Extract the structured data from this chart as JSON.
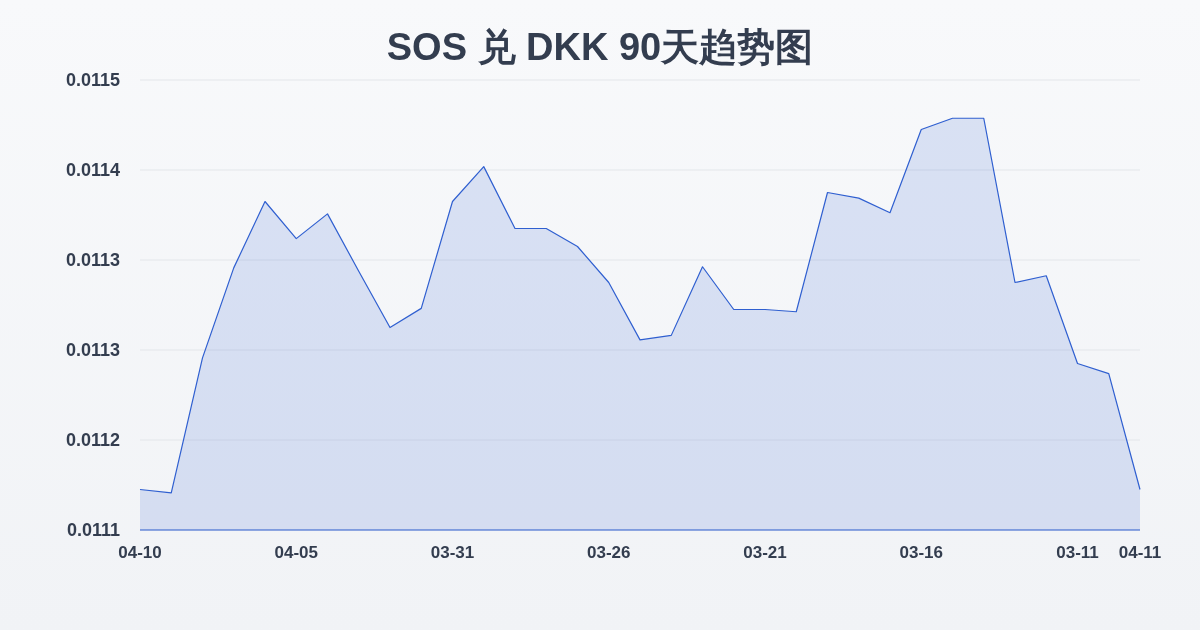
{
  "chart_data": {
    "type": "area",
    "title": "SOS 兑 DKK 90天趋势图",
    "categories": [
      "04-10",
      null,
      null,
      null,
      null,
      "04-05",
      null,
      null,
      null,
      null,
      "03-31",
      null,
      null,
      null,
      null,
      "03-26",
      null,
      null,
      null,
      null,
      "03-21",
      null,
      null,
      null,
      null,
      "03-16",
      null,
      null,
      null,
      null,
      "03-11",
      null,
      "04-11"
    ],
    "values": [
      0.011136,
      0.011133,
      0.011253,
      0.011333,
      0.011392,
      0.011359,
      0.011381,
      0.01133,
      0.01128,
      0.011297,
      0.011392,
      0.011423,
      0.011368,
      0.011368,
      0.011352,
      0.01132,
      0.011269,
      0.011273,
      0.011334,
      0.011296,
      0.011296,
      0.011294,
      0.0114,
      0.011395,
      0.011382,
      0.011456,
      0.011466,
      0.011466,
      0.01132,
      0.011326,
      0.011248,
      0.011239,
      0.011136
    ],
    "color": "#2f5fd0",
    "ylim": [
      0.0111,
      0.0115
    ],
    "yticks": [
      {
        "value": 0.0111,
        "label": "0.0111"
      },
      {
        "value": 0.01118,
        "label": "0.0112"
      },
      {
        "value": 0.01126,
        "label": "0.0113"
      },
      {
        "value": 0.01134,
        "label": "0.0113"
      },
      {
        "value": 0.01142,
        "label": "0.0114"
      },
      {
        "value": 0.0115,
        "label": "0.0115"
      }
    ],
    "grid": "y"
  }
}
